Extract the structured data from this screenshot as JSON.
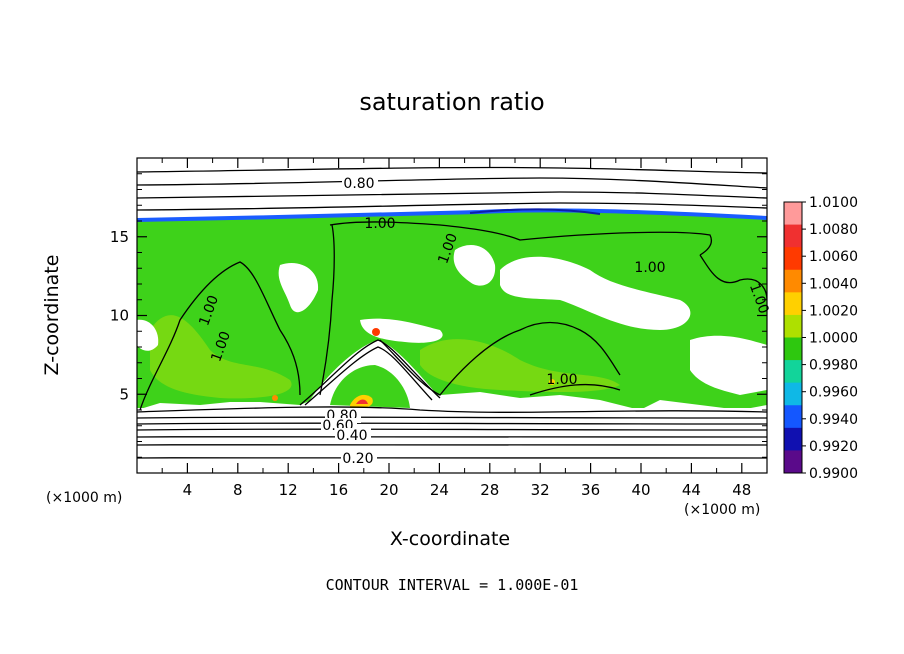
{
  "chart_data": {
    "type": "heatmap",
    "title": "saturation ratio",
    "xlabel": "X-coordinate",
    "ylabel": "Z-coordinate",
    "x_unit_left": "(×1000 m)",
    "x_unit_right": "(×1000 m)",
    "xlim": [
      0,
      50
    ],
    "ylim": [
      0,
      20
    ],
    "x_ticks": [
      "4",
      "8",
      "12",
      "16",
      "20",
      "24",
      "28",
      "32",
      "36",
      "40",
      "44",
      "48"
    ],
    "y_ticks": [
      "5",
      "10",
      "15"
    ],
    "colorbar": {
      "labels": [
        "1.0100",
        "1.0080",
        "1.0060",
        "1.0040",
        "1.0020",
        "1.0000",
        "0.9980",
        "0.9960",
        "0.9940",
        "0.9920",
        "0.9900"
      ],
      "colors": [
        "#ff9a9a",
        "#f03030",
        "#ff3a00",
        "#ff8a00",
        "#ffd000",
        "#aee000",
        "#2ec80f",
        "#12d49a",
        "#0fb8e6",
        "#1457ff",
        "#1010b0",
        "#5a0a8a"
      ]
    },
    "contour_labels": [
      "0.80",
      "1.00",
      "1.00",
      "1.00",
      "1.00",
      "1.00",
      "1.00",
      "1.00",
      "0.80",
      "0.60",
      "0.40",
      "0.20"
    ],
    "footer": "CONTOUR INTERVAL = 1.000E-01"
  }
}
